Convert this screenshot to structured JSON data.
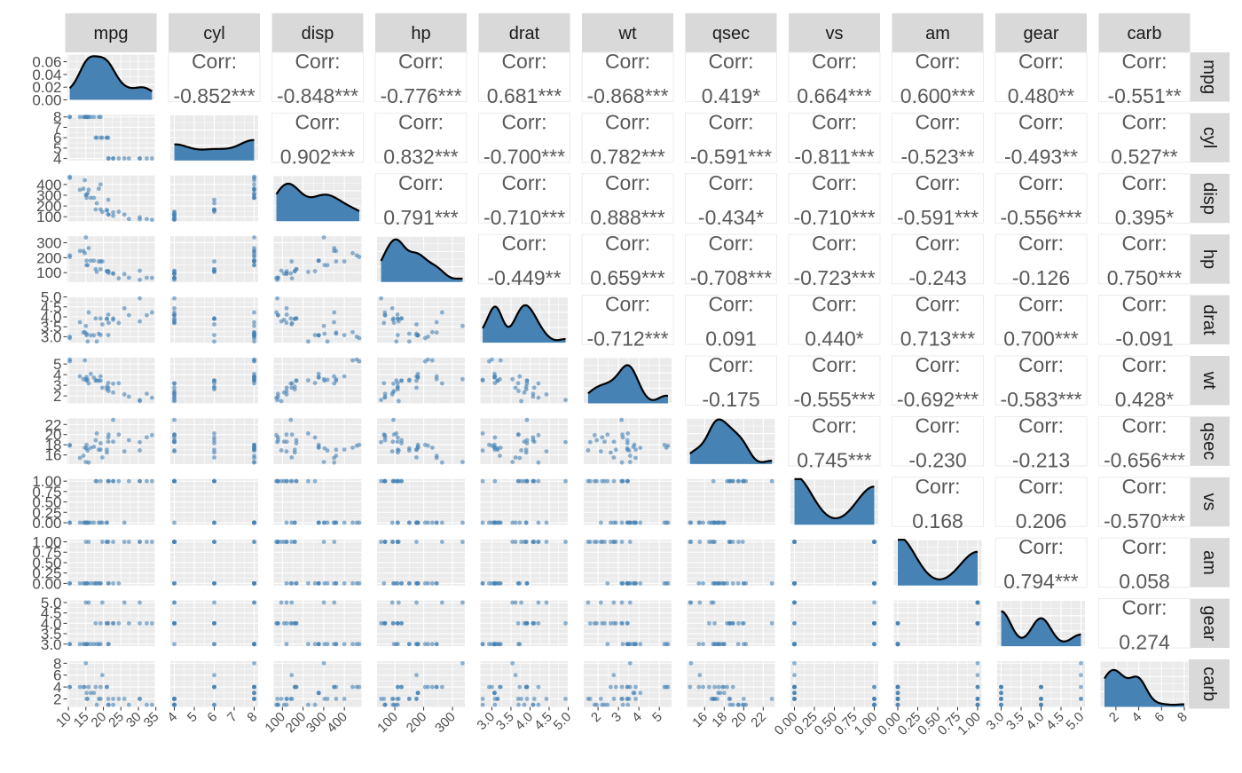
{
  "chart_data": {
    "type": "pairs",
    "variables": [
      "mpg",
      "cyl",
      "disp",
      "hp",
      "drat",
      "wt",
      "qsec",
      "vs",
      "am",
      "gear",
      "carb"
    ],
    "corr_label": "Corr:",
    "correlations": [
      {
        "row": "mpg",
        "col": "cyl",
        "text": "-0.852***"
      },
      {
        "row": "mpg",
        "col": "disp",
        "text": "-0.848***"
      },
      {
        "row": "mpg",
        "col": "hp",
        "text": "-0.776***"
      },
      {
        "row": "mpg",
        "col": "drat",
        "text": "0.681***"
      },
      {
        "row": "mpg",
        "col": "wt",
        "text": "-0.868***"
      },
      {
        "row": "mpg",
        "col": "qsec",
        "text": "0.419*"
      },
      {
        "row": "mpg",
        "col": "vs",
        "text": "0.664***"
      },
      {
        "row": "mpg",
        "col": "am",
        "text": "0.600***"
      },
      {
        "row": "mpg",
        "col": "gear",
        "text": "0.480**"
      },
      {
        "row": "mpg",
        "col": "carb",
        "text": "-0.551**"
      },
      {
        "row": "cyl",
        "col": "disp",
        "text": "0.902***"
      },
      {
        "row": "cyl",
        "col": "hp",
        "text": "0.832***"
      },
      {
        "row": "cyl",
        "col": "drat",
        "text": "-0.700***"
      },
      {
        "row": "cyl",
        "col": "wt",
        "text": "0.782***"
      },
      {
        "row": "cyl",
        "col": "qsec",
        "text": "-0.591***"
      },
      {
        "row": "cyl",
        "col": "vs",
        "text": "-0.811***"
      },
      {
        "row": "cyl",
        "col": "am",
        "text": "-0.523**"
      },
      {
        "row": "cyl",
        "col": "gear",
        "text": "-0.493**"
      },
      {
        "row": "cyl",
        "col": "carb",
        "text": "0.527**"
      },
      {
        "row": "disp",
        "col": "hp",
        "text": "0.791***"
      },
      {
        "row": "disp",
        "col": "drat",
        "text": "-0.710***"
      },
      {
        "row": "disp",
        "col": "wt",
        "text": "0.888***"
      },
      {
        "row": "disp",
        "col": "qsec",
        "text": "-0.434*"
      },
      {
        "row": "disp",
        "col": "vs",
        "text": "-0.710***"
      },
      {
        "row": "disp",
        "col": "am",
        "text": "-0.591***"
      },
      {
        "row": "disp",
        "col": "gear",
        "text": "-0.556***"
      },
      {
        "row": "disp",
        "col": "carb",
        "text": "0.395*"
      },
      {
        "row": "hp",
        "col": "drat",
        "text": "-0.449**"
      },
      {
        "row": "hp",
        "col": "wt",
        "text": "0.659***"
      },
      {
        "row": "hp",
        "col": "qsec",
        "text": "-0.708***"
      },
      {
        "row": "hp",
        "col": "vs",
        "text": "-0.723***"
      },
      {
        "row": "hp",
        "col": "am",
        "text": "-0.243"
      },
      {
        "row": "hp",
        "col": "gear",
        "text": "-0.126"
      },
      {
        "row": "hp",
        "col": "carb",
        "text": "0.750***"
      },
      {
        "row": "drat",
        "col": "wt",
        "text": "-0.712***"
      },
      {
        "row": "drat",
        "col": "qsec",
        "text": "0.091"
      },
      {
        "row": "drat",
        "col": "vs",
        "text": "0.440*"
      },
      {
        "row": "drat",
        "col": "am",
        "text": "0.713***"
      },
      {
        "row": "drat",
        "col": "gear",
        "text": "0.700***"
      },
      {
        "row": "drat",
        "col": "carb",
        "text": "-0.091"
      },
      {
        "row": "wt",
        "col": "qsec",
        "text": "-0.175"
      },
      {
        "row": "wt",
        "col": "vs",
        "text": "-0.555***"
      },
      {
        "row": "wt",
        "col": "am",
        "text": "-0.692***"
      },
      {
        "row": "wt",
        "col": "gear",
        "text": "-0.583***"
      },
      {
        "row": "wt",
        "col": "carb",
        "text": "0.428*"
      },
      {
        "row": "qsec",
        "col": "vs",
        "text": "0.745***"
      },
      {
        "row": "qsec",
        "col": "am",
        "text": "-0.230"
      },
      {
        "row": "qsec",
        "col": "gear",
        "text": "-0.213"
      },
      {
        "row": "qsec",
        "col": "carb",
        "text": "-0.656***"
      },
      {
        "row": "vs",
        "col": "am",
        "text": "0.168"
      },
      {
        "row": "vs",
        "col": "gear",
        "text": "0.206"
      },
      {
        "row": "vs",
        "col": "carb",
        "text": "-0.570***"
      },
      {
        "row": "am",
        "col": "gear",
        "text": "0.794***"
      },
      {
        "row": "am",
        "col": "carb",
        "text": "0.058"
      },
      {
        "row": "gear",
        "col": "carb",
        "text": "0.274"
      }
    ],
    "x_ranges": {
      "mpg": [
        9.6,
        34.7
      ],
      "cyl": [
        3.8,
        8.2
      ],
      "disp": [
        58,
        483
      ],
      "hp": [
        38,
        343
      ],
      "drat": [
        2.7,
        5.0
      ],
      "wt": [
        1.3,
        5.6
      ],
      "qsec": [
        14.2,
        23.2
      ],
      "vs": [
        -0.05,
        1.05
      ],
      "am": [
        -0.05,
        1.05
      ],
      "gear": [
        2.9,
        5.1
      ],
      "carb": [
        0.65,
        8.35
      ]
    },
    "y_ranges": {
      "mpg": [
        0,
        0.072
      ],
      "cyl": [
        3.8,
        8.2
      ],
      "disp": [
        58,
        483
      ],
      "hp": [
        38,
        343
      ],
      "drat": [
        2.7,
        5.0
      ],
      "wt": [
        1.3,
        5.6
      ],
      "qsec": [
        14.2,
        23.2
      ],
      "vs": [
        -0.05,
        1.05
      ],
      "am": [
        -0.05,
        1.05
      ],
      "gear": [
        2.9,
        5.1
      ],
      "carb": [
        0.65,
        8.35
      ]
    },
    "x_ticks": {
      "mpg": [
        10,
        15,
        20,
        25,
        30,
        35
      ],
      "cyl": [
        4,
        5,
        6,
        7,
        8
      ],
      "disp": [
        100,
        200,
        300,
        400
      ],
      "hp": [
        100,
        200,
        300
      ],
      "drat": [
        3.0,
        3.5,
        4.0,
        4.5,
        5.0
      ],
      "wt": [
        2,
        3,
        4,
        5
      ],
      "qsec": [
        16,
        18,
        20,
        22
      ],
      "vs": [
        0.0,
        0.25,
        0.5,
        0.75,
        1.0
      ],
      "am": [
        0.0,
        0.25,
        0.5,
        0.75,
        1.0
      ],
      "gear": [
        3.0,
        3.5,
        4.0,
        4.5,
        5.0
      ],
      "carb": [
        2,
        4,
        6,
        8
      ]
    },
    "x_tick_labels": {
      "mpg": [
        "10",
        "15",
        "20",
        "25",
        "30",
        "35"
      ],
      "cyl": [
        "4",
        "5",
        "6",
        "7",
        "8"
      ],
      "disp": [
        "100",
        "200",
        "300",
        "400"
      ],
      "hp": [
        "100",
        "200",
        "300"
      ],
      "drat": [
        "3.0",
        "3.5",
        "4.0",
        "4.5",
        "5.0"
      ],
      "wt": [
        "2",
        "3",
        "4",
        "5"
      ],
      "qsec": [
        "16",
        "18",
        "20",
        "22"
      ],
      "vs": [
        "0.00",
        "0.25",
        "0.50",
        "0.75",
        "1.00"
      ],
      "am": [
        "0.00",
        "0.25",
        "0.50",
        "0.75",
        "1.00"
      ],
      "gear": [
        "3.0",
        "3.5",
        "4.0",
        "4.5",
        "5.0"
      ],
      "carb": [
        "2",
        "4",
        "6",
        "8"
      ]
    },
    "y_ticks": {
      "mpg": [
        0.0,
        0.02,
        0.04,
        0.06
      ],
      "cyl": [
        4,
        5,
        6,
        7,
        8
      ],
      "disp": [
        100,
        200,
        300,
        400
      ],
      "hp": [
        100,
        200,
        300
      ],
      "drat": [
        3.0,
        3.5,
        4.0,
        4.5,
        5.0
      ],
      "wt": [
        2,
        3,
        4,
        5
      ],
      "qsec": [
        16,
        18,
        20,
        22
      ],
      "vs": [
        0.0,
        0.25,
        0.5,
        0.75,
        1.0
      ],
      "am": [
        0.0,
        0.25,
        0.5,
        0.75,
        1.0
      ],
      "gear": [
        3.0,
        3.5,
        4.0,
        4.5,
        5.0
      ],
      "carb": [
        2,
        4,
        6,
        8
      ]
    },
    "y_tick_labels": {
      "mpg": [
        "0.00",
        "0.02",
        "0.04",
        "0.06"
      ],
      "cyl": [
        "4",
        "5",
        "6",
        "7",
        "8"
      ],
      "disp": [
        "100",
        "200",
        "300",
        "400"
      ],
      "hp": [
        "100",
        "200",
        "300"
      ],
      "drat": [
        "3.0",
        "3.5",
        "4.0",
        "4.5",
        "5.0"
      ],
      "wt": [
        "2",
        "3",
        "4",
        "5"
      ],
      "qsec": [
        "16",
        "18",
        "20",
        "22"
      ],
      "vs": [
        "0.00",
        "0.25",
        "0.50",
        "0.75",
        "1.00"
      ],
      "am": [
        "0.00",
        "0.25",
        "0.50",
        "0.75",
        "1.00"
      ],
      "gear": [
        "3.0",
        "3.5",
        "4.0",
        "4.5",
        "5.0"
      ],
      "carb": [
        "2",
        "4",
        "6",
        "8"
      ]
    },
    "density_bandwidth": {
      "mpg": 2.2,
      "cyl": 0.8,
      "disp": 55,
      "hp": 28,
      "drat": 0.17,
      "wt": 0.38,
      "qsec": 0.75,
      "vs": 0.22,
      "am": 0.22,
      "gear": 0.25,
      "carb": 0.75
    },
    "density_ymax": {
      "cyl": 0.5,
      "disp": 0.0038,
      "hp": 0.0065,
      "drat": 0.95,
      "wt": 0.58,
      "qsec": 0.23,
      "vs": 0.95,
      "am": 1.0,
      "gear": 0.98,
      "carb": 0.3
    },
    "observations": [
      {
        "mpg": 21.0,
        "cyl": 6,
        "disp": 160,
        "hp": 110,
        "drat": 3.9,
        "wt": 2.62,
        "qsec": 16.46,
        "vs": 0,
        "am": 1,
        "gear": 4,
        "carb": 4
      },
      {
        "mpg": 21.0,
        "cyl": 6,
        "disp": 160,
        "hp": 110,
        "drat": 3.9,
        "wt": 2.875,
        "qsec": 17.02,
        "vs": 0,
        "am": 1,
        "gear": 4,
        "carb": 4
      },
      {
        "mpg": 22.8,
        "cyl": 4,
        "disp": 108,
        "hp": 93,
        "drat": 3.85,
        "wt": 2.32,
        "qsec": 18.61,
        "vs": 1,
        "am": 1,
        "gear": 4,
        "carb": 1
      },
      {
        "mpg": 21.4,
        "cyl": 6,
        "disp": 258,
        "hp": 110,
        "drat": 3.08,
        "wt": 3.215,
        "qsec": 19.44,
        "vs": 1,
        "am": 0,
        "gear": 3,
        "carb": 1
      },
      {
        "mpg": 18.7,
        "cyl": 8,
        "disp": 360,
        "hp": 175,
        "drat": 3.15,
        "wt": 3.44,
        "qsec": 17.02,
        "vs": 0,
        "am": 0,
        "gear": 3,
        "carb": 2
      },
      {
        "mpg": 18.1,
        "cyl": 6,
        "disp": 225,
        "hp": 105,
        "drat": 2.76,
        "wt": 3.46,
        "qsec": 20.22,
        "vs": 1,
        "am": 0,
        "gear": 3,
        "carb": 1
      },
      {
        "mpg": 14.3,
        "cyl": 8,
        "disp": 360,
        "hp": 245,
        "drat": 3.21,
        "wt": 3.57,
        "qsec": 15.84,
        "vs": 0,
        "am": 0,
        "gear": 3,
        "carb": 4
      },
      {
        "mpg": 24.4,
        "cyl": 4,
        "disp": 146.7,
        "hp": 62,
        "drat": 3.69,
        "wt": 3.19,
        "qsec": 20.0,
        "vs": 1,
        "am": 0,
        "gear": 4,
        "carb": 2
      },
      {
        "mpg": 22.8,
        "cyl": 4,
        "disp": 140.8,
        "hp": 95,
        "drat": 3.92,
        "wt": 3.15,
        "qsec": 22.9,
        "vs": 1,
        "am": 0,
        "gear": 4,
        "carb": 2
      },
      {
        "mpg": 19.2,
        "cyl": 6,
        "disp": 167.6,
        "hp": 123,
        "drat": 3.92,
        "wt": 3.44,
        "qsec": 18.3,
        "vs": 1,
        "am": 0,
        "gear": 4,
        "carb": 4
      },
      {
        "mpg": 17.8,
        "cyl": 6,
        "disp": 167.6,
        "hp": 123,
        "drat": 3.92,
        "wt": 3.44,
        "qsec": 18.9,
        "vs": 1,
        "am": 0,
        "gear": 4,
        "carb": 4
      },
      {
        "mpg": 16.4,
        "cyl": 8,
        "disp": 275.8,
        "hp": 180,
        "drat": 3.07,
        "wt": 4.07,
        "qsec": 17.4,
        "vs": 0,
        "am": 0,
        "gear": 3,
        "carb": 3
      },
      {
        "mpg": 17.3,
        "cyl": 8,
        "disp": 275.8,
        "hp": 180,
        "drat": 3.07,
        "wt": 3.73,
        "qsec": 17.6,
        "vs": 0,
        "am": 0,
        "gear": 3,
        "carb": 3
      },
      {
        "mpg": 15.2,
        "cyl": 8,
        "disp": 275.8,
        "hp": 180,
        "drat": 3.07,
        "wt": 3.78,
        "qsec": 18.0,
        "vs": 0,
        "am": 0,
        "gear": 3,
        "carb": 3
      },
      {
        "mpg": 10.4,
        "cyl": 8,
        "disp": 472,
        "hp": 205,
        "drat": 2.93,
        "wt": 5.25,
        "qsec": 17.98,
        "vs": 0,
        "am": 0,
        "gear": 3,
        "carb": 4
      },
      {
        "mpg": 10.4,
        "cyl": 8,
        "disp": 460,
        "hp": 215,
        "drat": 3.0,
        "wt": 5.424,
        "qsec": 17.82,
        "vs": 0,
        "am": 0,
        "gear": 3,
        "carb": 4
      },
      {
        "mpg": 14.7,
        "cyl": 8,
        "disp": 440,
        "hp": 230,
        "drat": 3.23,
        "wt": 5.345,
        "qsec": 17.42,
        "vs": 0,
        "am": 0,
        "gear": 3,
        "carb": 4
      },
      {
        "mpg": 32.4,
        "cyl": 4,
        "disp": 78.7,
        "hp": 66,
        "drat": 4.08,
        "wt": 2.2,
        "qsec": 19.47,
        "vs": 1,
        "am": 1,
        "gear": 4,
        "carb": 1
      },
      {
        "mpg": 30.4,
        "cyl": 4,
        "disp": 75.7,
        "hp": 52,
        "drat": 4.93,
        "wt": 1.615,
        "qsec": 18.52,
        "vs": 1,
        "am": 1,
        "gear": 4,
        "carb": 2
      },
      {
        "mpg": 33.9,
        "cyl": 4,
        "disp": 71.1,
        "hp": 65,
        "drat": 4.22,
        "wt": 1.835,
        "qsec": 19.9,
        "vs": 1,
        "am": 1,
        "gear": 4,
        "carb": 1
      },
      {
        "mpg": 21.5,
        "cyl": 4,
        "disp": 120.1,
        "hp": 97,
        "drat": 3.7,
        "wt": 2.465,
        "qsec": 20.01,
        "vs": 1,
        "am": 0,
        "gear": 3,
        "carb": 1
      },
      {
        "mpg": 15.5,
        "cyl": 8,
        "disp": 318,
        "hp": 150,
        "drat": 2.76,
        "wt": 3.52,
        "qsec": 16.87,
        "vs": 0,
        "am": 0,
        "gear": 3,
        "carb": 2
      },
      {
        "mpg": 15.2,
        "cyl": 8,
        "disp": 304,
        "hp": 150,
        "drat": 3.15,
        "wt": 3.435,
        "qsec": 17.3,
        "vs": 0,
        "am": 0,
        "gear": 3,
        "carb": 2
      },
      {
        "mpg": 13.3,
        "cyl": 8,
        "disp": 350,
        "hp": 245,
        "drat": 3.73,
        "wt": 3.84,
        "qsec": 15.41,
        "vs": 0,
        "am": 0,
        "gear": 3,
        "carb": 4
      },
      {
        "mpg": 19.2,
        "cyl": 8,
        "disp": 400,
        "hp": 175,
        "drat": 3.08,
        "wt": 3.845,
        "qsec": 17.05,
        "vs": 0,
        "am": 0,
        "gear": 3,
        "carb": 2
      },
      {
        "mpg": 27.3,
        "cyl": 4,
        "disp": 79,
        "hp": 66,
        "drat": 4.08,
        "wt": 1.935,
        "qsec": 18.9,
        "vs": 1,
        "am": 1,
        "gear": 4,
        "carb": 1
      },
      {
        "mpg": 26.0,
        "cyl": 4,
        "disp": 120.3,
        "hp": 91,
        "drat": 4.43,
        "wt": 2.14,
        "qsec": 16.7,
        "vs": 0,
        "am": 1,
        "gear": 5,
        "carb": 2
      },
      {
        "mpg": 30.4,
        "cyl": 4,
        "disp": 95.1,
        "hp": 113,
        "drat": 3.77,
        "wt": 1.513,
        "qsec": 16.9,
        "vs": 1,
        "am": 1,
        "gear": 5,
        "carb": 2
      },
      {
        "mpg": 15.8,
        "cyl": 8,
        "disp": 351,
        "hp": 264,
        "drat": 4.22,
        "wt": 3.17,
        "qsec": 14.5,
        "vs": 0,
        "am": 1,
        "gear": 5,
        "carb": 4
      },
      {
        "mpg": 19.7,
        "cyl": 6,
        "disp": 145,
        "hp": 175,
        "drat": 3.62,
        "wt": 2.77,
        "qsec": 15.5,
        "vs": 0,
        "am": 1,
        "gear": 5,
        "carb": 6
      },
      {
        "mpg": 15.0,
        "cyl": 8,
        "disp": 301,
        "hp": 335,
        "drat": 3.54,
        "wt": 3.57,
        "qsec": 14.6,
        "vs": 0,
        "am": 1,
        "gear": 5,
        "carb": 8
      },
      {
        "mpg": 21.4,
        "cyl": 4,
        "disp": 121,
        "hp": 109,
        "drat": 4.11,
        "wt": 2.78,
        "qsec": 18.6,
        "vs": 1,
        "am": 1,
        "gear": 4,
        "carb": 2
      }
    ],
    "colors": {
      "point": "#4682b4",
      "fill": "#4682b4",
      "line": "#000000",
      "panel": "#ebebeb",
      "grid": "#ffffff",
      "strip": "#d9d9d9",
      "strip_text": "#1a1a1a",
      "corr_text": "#595959",
      "axis_text": "#4d4d4d",
      "corr_panel_border": "#ebebeb"
    },
    "grid": true
  }
}
